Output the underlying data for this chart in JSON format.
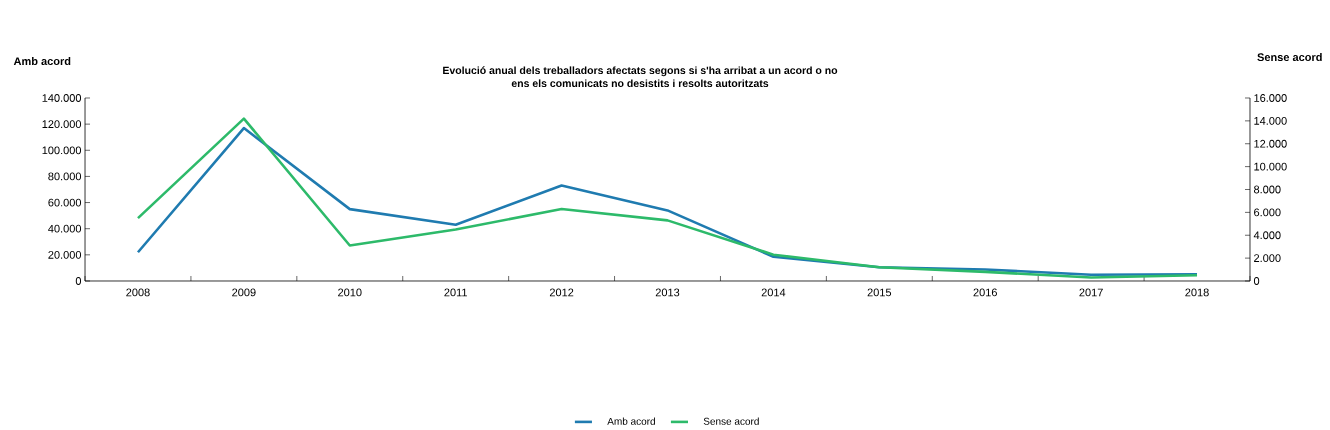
{
  "chart_data": {
    "type": "line",
    "title": "Evolució anual dels treballadors afectats segons si s'ha arribat a un acord o no",
    "subtitle": "ens els comunicats no desistits i resolts autoritzats",
    "ylabel": "Amb acord",
    "y2label": "Sense acord",
    "categories": [
      "2008",
      "2009",
      "2010",
      "2011",
      "2012",
      "2013",
      "2014",
      "2015",
      "2016",
      "2017",
      "2018"
    ],
    "series": [
      {
        "name": "Amb acord",
        "color": "#1f7bb0",
        "values": [
          22000,
          117000,
          55000,
          43000,
          73000,
          54000,
          18500,
          10500,
          8800,
          4800,
          5200
        ]
      },
      {
        "name": "Sense acord",
        "color": "#2dba6a",
        "axis": "y2",
        "values": [
          5500,
          14200,
          3100,
          4500,
          6300,
          5300,
          2300,
          1200,
          800,
          300,
          500
        ]
      }
    ],
    "ylim": [
      0,
      140000
    ],
    "yticks": [
      0,
      {
        "value": 20000,
        "label": "20.000"
      },
      {
        "value": 40000,
        "label": "40.000"
      },
      {
        "value": 60000,
        "label": "60.000"
      },
      {
        "value": 80000,
        "label": "80.000"
      },
      {
        "value": 100000,
        "label": "100.000"
      },
      {
        "value": 120000,
        "label": "120.000"
      },
      {
        "value": 140000,
        "label": "140.000"
      }
    ],
    "y2lim": [
      0,
      16000
    ],
    "y2ticks": [
      0,
      {
        "value": 2000,
        "label": "2.000"
      },
      {
        "value": 4000,
        "label": "4.000"
      },
      {
        "value": 6000,
        "label": "6.000"
      },
      {
        "value": 8000,
        "label": "8.000"
      },
      {
        "value": 10000,
        "label": "10.000"
      },
      {
        "value": 12000,
        "label": "12.000"
      },
      {
        "value": 14000,
        "label": "14.000"
      },
      {
        "value": 16000,
        "label": "16.000"
      }
    ],
    "grid": false,
    "legend": "bottom",
    "marker": "none",
    "line_style": "solid"
  }
}
